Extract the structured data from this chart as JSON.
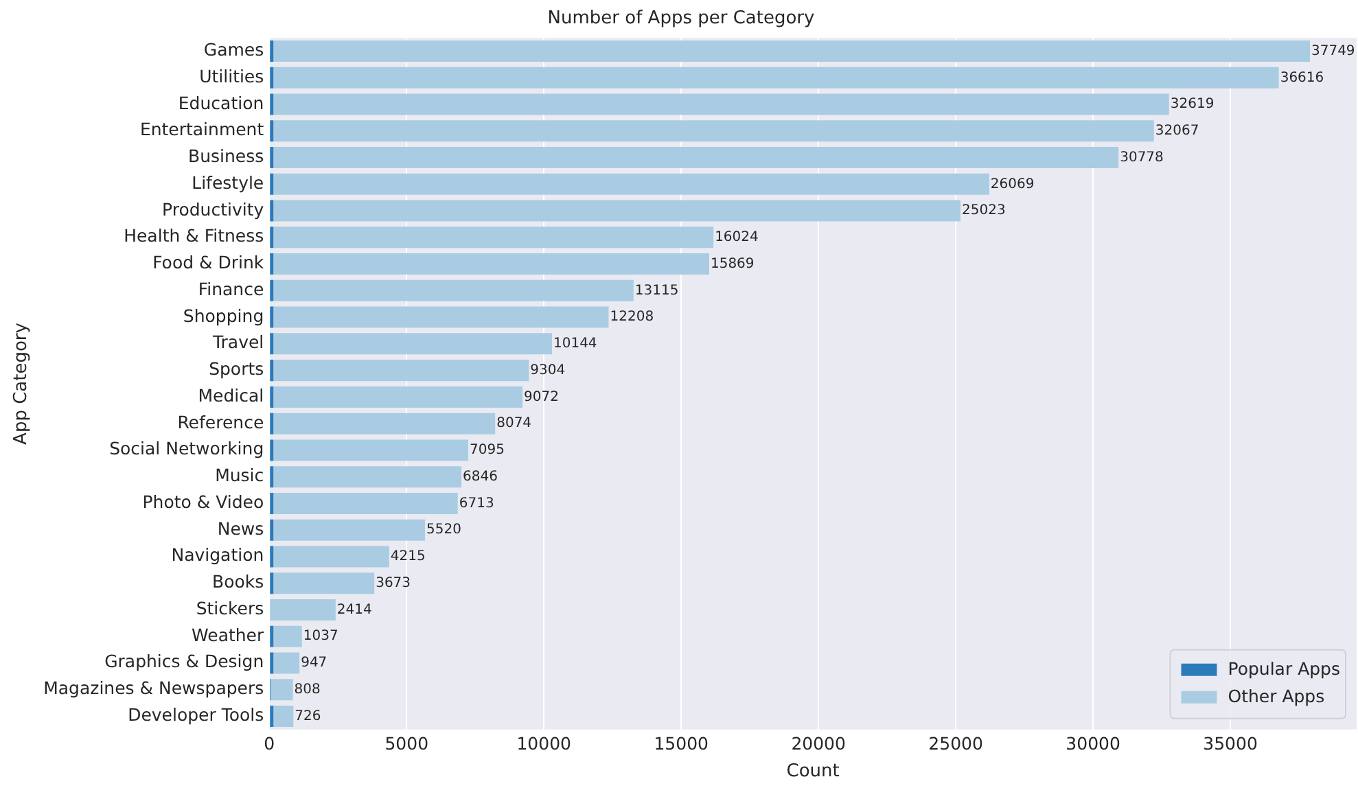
{
  "chart_data": {
    "type": "bar",
    "orientation": "horizontal",
    "stacked": true,
    "title": "Number of Apps per Category",
    "xlabel": "Count",
    "ylabel": "App Category",
    "categories": [
      "Games",
      "Utilities",
      "Education",
      "Entertainment",
      "Business",
      "Lifestyle",
      "Productivity",
      "Health & Fitness",
      "Food & Drink",
      "Finance",
      "Shopping",
      "Travel",
      "Sports",
      "Medical",
      "Reference",
      "Social Networking",
      "Music",
      "Photo & Video",
      "News",
      "Navigation",
      "Books",
      "Stickers",
      "Weather",
      "Graphics & Design",
      "Magazines & Newspapers",
      "Developer Tools"
    ],
    "series": [
      {
        "name": "Popular Apps",
        "color": "#2b7bba",
        "values": [
          150,
          150,
          150,
          150,
          150,
          150,
          150,
          150,
          150,
          150,
          150,
          150,
          150,
          150,
          150,
          150,
          150,
          150,
          150,
          150,
          150,
          null,
          150,
          150,
          50,
          150
        ]
      },
      {
        "name": "Other Apps",
        "color": "#a9cce3",
        "values": [
          37749,
          36616,
          32619,
          32067,
          30778,
          26069,
          25023,
          16024,
          15869,
          13115,
          12208,
          10144,
          9304,
          9072,
          8074,
          7095,
          6846,
          6713,
          5520,
          4215,
          3673,
          2414,
          1037,
          947,
          808,
          726
        ],
        "value_labels": [
          "37749",
          "36616",
          "32619",
          "32067",
          "30778",
          "26069",
          "25023",
          "16024",
          "15869",
          "13115",
          "12208",
          "10144",
          "9304",
          "9072",
          "8074",
          "7095",
          "6846",
          "6713",
          "5520",
          "4215",
          "3673",
          "2414",
          "1037",
          "947",
          "808",
          "726"
        ]
      }
    ],
    "xlim": [
      0,
      39600
    ],
    "xticks": [
      0,
      5000,
      10000,
      15000,
      20000,
      25000,
      30000,
      35000
    ],
    "grid": "x",
    "legend": "bottom right"
  }
}
